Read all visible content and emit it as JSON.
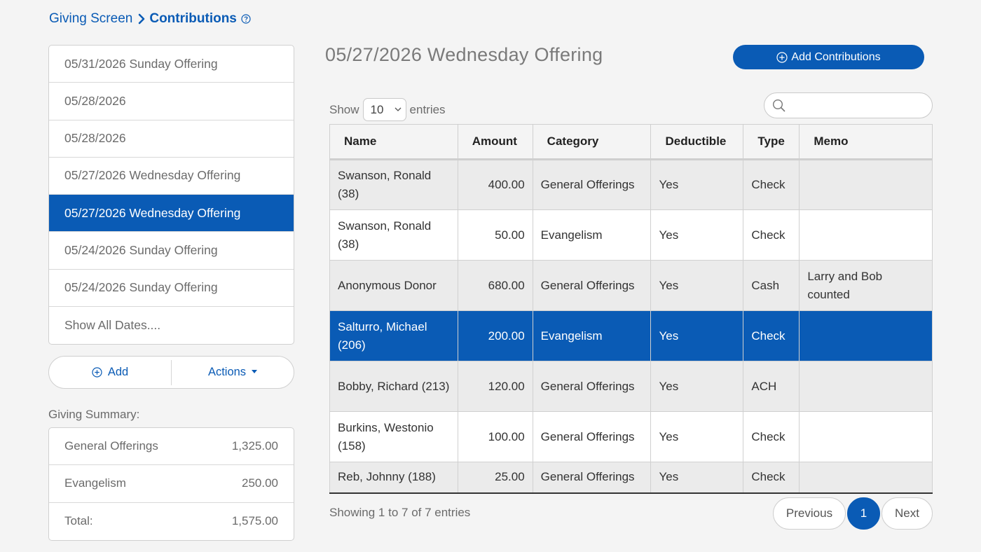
{
  "breadcrumb": {
    "parent": "Giving Screen",
    "current": "Contributions"
  },
  "dates": [
    "05/31/2026 Sunday Offering",
    "05/28/2026",
    "05/28/2026",
    "05/27/2026 Wednesday Offering",
    "05/27/2026 Wednesday Offering",
    "05/24/2026 Sunday Offering",
    "05/24/2026 Sunday Offering",
    "Show All Dates...."
  ],
  "selected_date_index": 4,
  "buttons": {
    "add": "Add",
    "actions": "Actions",
    "add_contributions": "Add Contributions"
  },
  "summary": {
    "title": "Giving Summary:",
    "rows": [
      {
        "label": "General Offerings",
        "value": "1,325.00"
      },
      {
        "label": "Evangelism",
        "value": "250.00"
      },
      {
        "label": "Total:",
        "value": "1,575.00"
      }
    ]
  },
  "main": {
    "title": "05/27/2026 Wednesday Offering",
    "show_label": "Show",
    "entries_value": "10",
    "entries_label": "entries",
    "search_placeholder": "",
    "columns": [
      "Name",
      "Amount",
      "Category",
      "Deductible",
      "Type",
      "Memo"
    ],
    "rows": [
      {
        "name": "Swanson, Ronald (38)",
        "amount": "400.00",
        "category": "General Offerings",
        "deductible": "Yes",
        "type": "Check",
        "memo": ""
      },
      {
        "name": "Swanson, Ronald (38)",
        "amount": "50.00",
        "category": "Evangelism",
        "deductible": "Yes",
        "type": "Check",
        "memo": ""
      },
      {
        "name": "Anonymous Donor",
        "amount": "680.00",
        "category": "General Offerings",
        "deductible": "Yes",
        "type": "Cash",
        "memo": "Larry and Bob counted"
      },
      {
        "name": "Salturro, Michael (206)",
        "amount": "200.00",
        "category": "Evangelism",
        "deductible": "Yes",
        "type": "Check",
        "memo": ""
      },
      {
        "name": "Bobby, Richard (213)",
        "amount": "120.00",
        "category": "General Offerings",
        "deductible": "Yes",
        "type": "ACH",
        "memo": ""
      },
      {
        "name": "Burkins, Westonio (158)",
        "amount": "100.00",
        "category": "General Offerings",
        "deductible": "Yes",
        "type": "Check",
        "memo": ""
      },
      {
        "name": "Reb, Johnny (188)",
        "amount": "25.00",
        "category": "General Offerings",
        "deductible": "Yes",
        "type": "Check",
        "memo": ""
      }
    ],
    "selected_row_index": 3,
    "showing_text": "Showing 1 to 7 of 7 entries",
    "pagination": {
      "previous": "Previous",
      "page": "1",
      "next": "Next"
    }
  },
  "colors": {
    "accent": "#0a5bb5",
    "background": "#f4f4f4"
  }
}
